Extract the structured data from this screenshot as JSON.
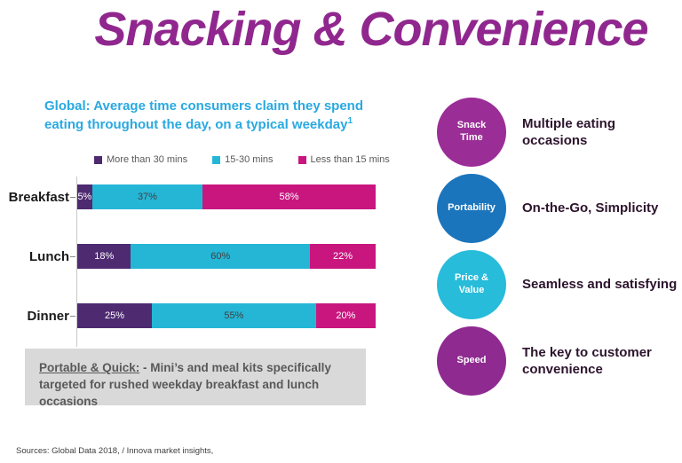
{
  "slide_title": "Snacking & Convenience",
  "chart_title": {
    "line1": "Global: Average time consumers claim they spend",
    "line2": "eating throughout the day, on a typical weekday",
    "superscript": "1"
  },
  "chart_data": {
    "type": "bar",
    "orientation": "horizontal",
    "stacked": true,
    "title": "Global: Average time consumers claim they spend eating throughout the day, on a typical weekday¹",
    "categories": [
      "Breakfast",
      "Lunch",
      "Dinner"
    ],
    "series": [
      {
        "name": "More than 30 mins",
        "color": "#4E2A71",
        "label_color": "#FFFFFF",
        "values": [
          5,
          18,
          25
        ]
      },
      {
        "name": "15-30 mins",
        "color": "#25B6D6",
        "label_color": "#404040",
        "values": [
          37,
          60,
          55
        ]
      },
      {
        "name": "Less than 15 mins",
        "color": "#C9167F",
        "label_color": "#FFFFFF",
        "values": [
          58,
          22,
          20
        ]
      }
    ],
    "xlim": [
      0,
      100
    ],
    "value_format": "percent",
    "legend_position": "top",
    "grid": false
  },
  "note_box": {
    "heading": "Portable & Quick:",
    "text": " - Mini’s and meal kits specifically targeted for rushed weekday breakfast and lunch occasions"
  },
  "features": [
    {
      "circle_label": "Snack Time",
      "circle_color": "#9B2D97",
      "description": "Multiple eating occasions"
    },
    {
      "circle_label": "Portability",
      "circle_color": "#1B75BC",
      "description": "On-the-Go, Simplicity"
    },
    {
      "circle_label": "Price & Value",
      "circle_color": "#27BCD9",
      "description": "Seamless and satisfying"
    },
    {
      "circle_label": "Speed",
      "circle_color": "#8E2A90",
      "description": "The key to customer convenience"
    }
  ],
  "footer": {
    "sources": "Sources: Global Data 2018, / Innova market insights,"
  },
  "colors": {
    "title_purple": "#90278E",
    "chart_title_blue": "#29A9E1",
    "note_box_bg": "#D9D9D9",
    "note_box_text": "#595959",
    "feature_text": "#2D142D",
    "axis_line": "#C9C9C9"
  }
}
